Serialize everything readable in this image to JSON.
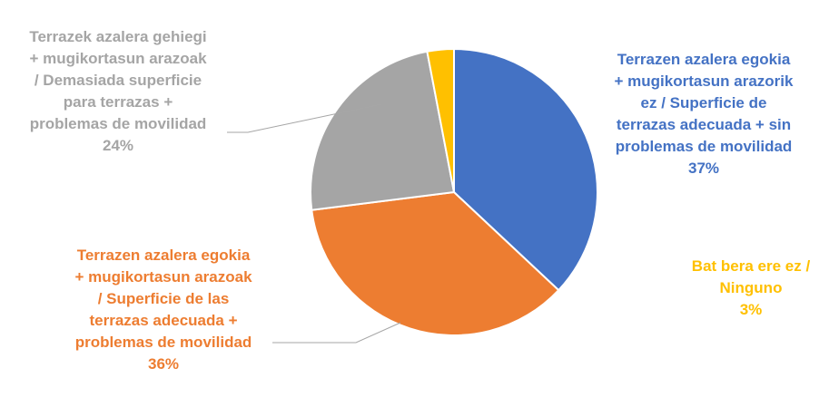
{
  "chart_data": {
    "type": "pie",
    "start_angle_deg": 0,
    "direction": "clockwise",
    "slices": [
      {
        "label": "Terrazen azalera egokia\n+ mugikortasun arazorik\nez / Superficie de\nterrazas adecuada + sin\nproblemas de movilidad",
        "value": 37,
        "value_label": "37%",
        "color": "#4472C4"
      },
      {
        "label": "Terrazen azalera egokia\n+ mugikortasun arazoak\n/ Superficie de las\nterrazas adecuada +\nproblemas de movilidad",
        "value": 36,
        "value_label": "36%",
        "color": "#ED7D31"
      },
      {
        "label": "Terrazek azalera gehiegi\n+ mugikortasun arazoak\n/ Demasiada superficie\npara terrazas +\nproblemas de movilidad",
        "value": 24,
        "value_label": "24%",
        "color": "#A5A5A5"
      },
      {
        "label": "Bat bera ere ez /\nNinguno",
        "value": 3,
        "value_label": "3%",
        "color": "#FFC000"
      }
    ],
    "leader_line_color": "#A6A6A6"
  }
}
